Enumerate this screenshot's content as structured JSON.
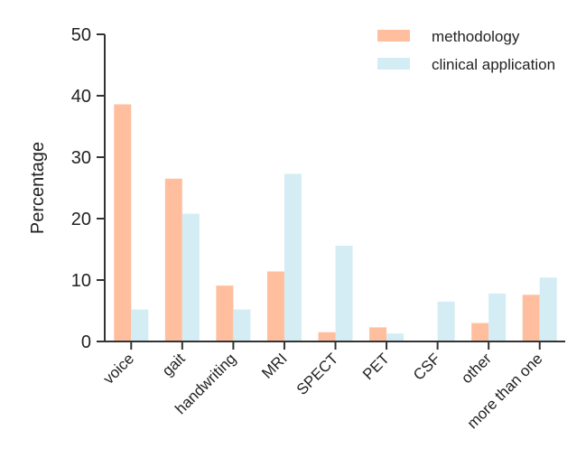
{
  "chart_data": {
    "type": "bar",
    "categories": [
      "voice",
      "gait",
      "handwriting",
      "MRI",
      "SPECT",
      "PET",
      "CSF",
      "other",
      "more than one"
    ],
    "series": [
      {
        "name": "methodology",
        "values": [
          38.6,
          26.5,
          9.1,
          11.4,
          1.5,
          2.3,
          0,
          3.0,
          7.6
        ],
        "color": "#ffbf9f"
      },
      {
        "name": "clinical application",
        "values": [
          5.2,
          20.8,
          5.2,
          27.3,
          15.6,
          1.3,
          6.5,
          7.8,
          10.4
        ],
        "color": "#d4edf4"
      }
    ],
    "xlabel": "",
    "ylabel": "Percentage",
    "ylim": [
      0,
      50
    ],
    "yticks": [
      0,
      10,
      20,
      30,
      40,
      50
    ],
    "grid": false,
    "legend_position": "top-right"
  }
}
